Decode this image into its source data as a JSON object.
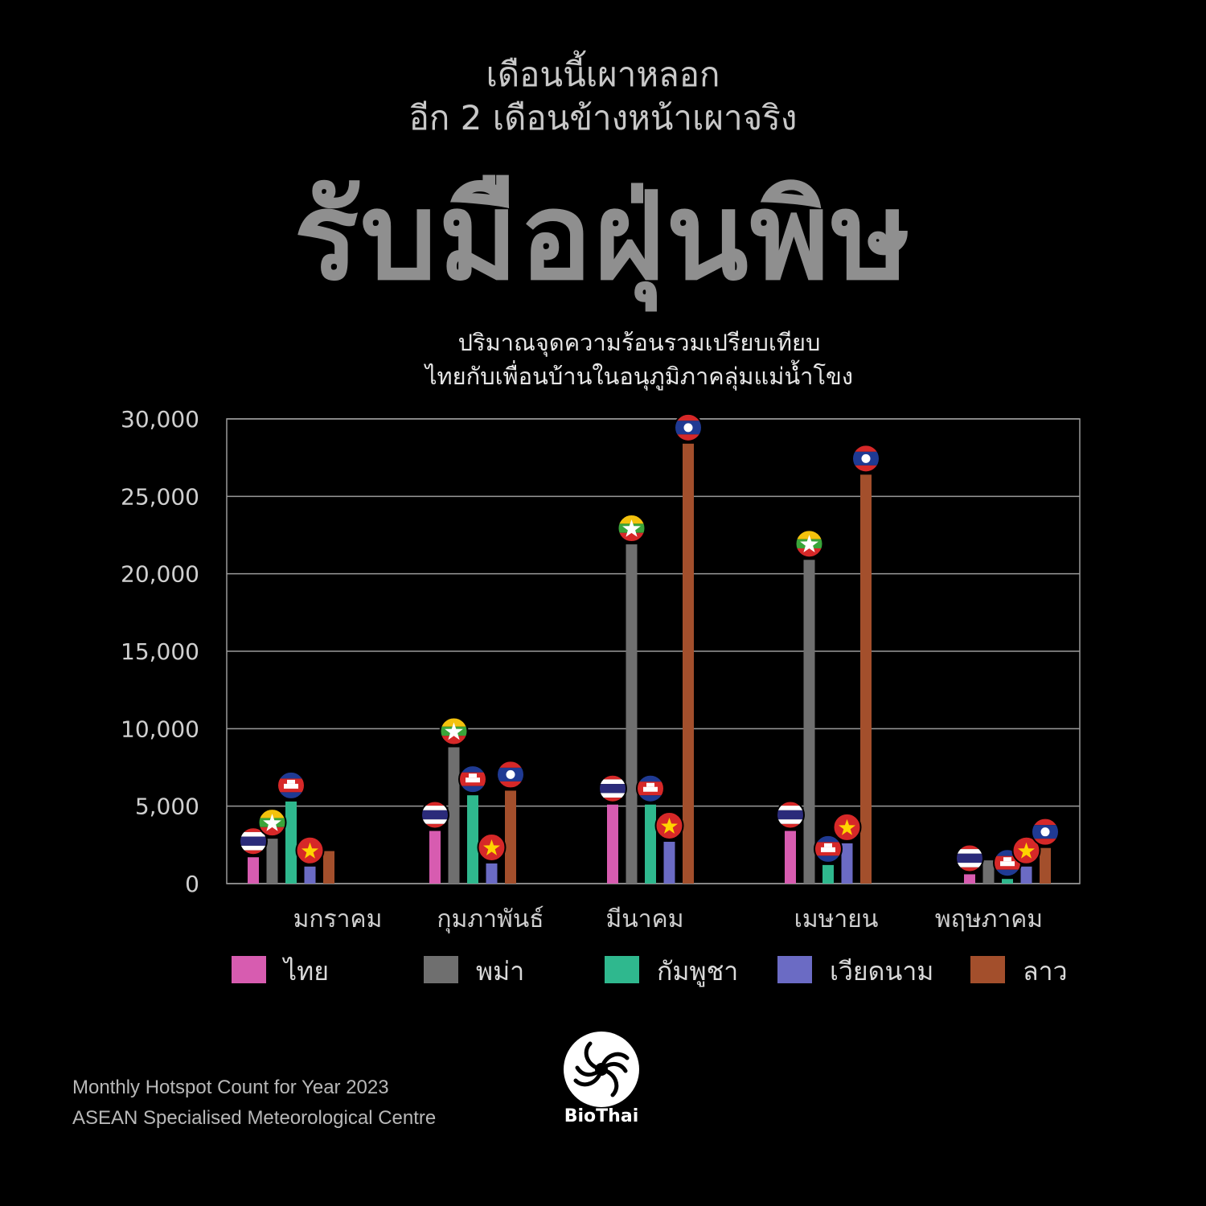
{
  "header": {
    "line1": "เดือนนี้เผาหลอก",
    "line2": "อีก 2 เดือนข้างหน้าเผาจริง",
    "title": "รับมือฝุ่นพิษ",
    "subtitle1": "ปริมาณจุดความร้อนรวมเปรียบเทียบ",
    "subtitle2": "ไทยกับเพื่อนบ้านในอนุภูมิภาคลุ่มแม่น้ำโขง"
  },
  "chart_data": {
    "type": "bar",
    "title": "",
    "xlabel": "",
    "ylabel": "",
    "ylim": [
      0,
      30000
    ],
    "yticks": [
      0,
      5000,
      10000,
      15000,
      20000,
      25000,
      30000
    ],
    "ytick_labels": [
      "0",
      "5,000",
      "10,000",
      "15,000",
      "20,000",
      "25,000",
      "30,000"
    ],
    "grid": true,
    "legend_position": "bottom",
    "categories": [
      "มกราคม",
      "กุมภาพันธ์",
      "มีนาคม",
      "เมษายน",
      "พฤษภาคม"
    ],
    "series": [
      {
        "name": "ไทย",
        "color": "#d75cb0",
        "flag": "thailand-flag-icon",
        "values": [
          1700,
          3400,
          5100,
          3400,
          600
        ]
      },
      {
        "name": "พม่า",
        "color": "#6f6f6f",
        "flag": "myanmar-flag-icon",
        "values": [
          2900,
          8800,
          21900,
          20900,
          1500
        ]
      },
      {
        "name": "กัมพูชา",
        "color": "#2fb88e",
        "flag": "cambodia-flag-icon",
        "values": [
          5300,
          5700,
          5100,
          1200,
          300
        ]
      },
      {
        "name": "เวียดนาม",
        "color": "#6b6bc4",
        "flag": "vietnam-flag-icon",
        "values": [
          1100,
          1300,
          2700,
          2600,
          1100
        ]
      },
      {
        "name": "ลาว",
        "color": "#a34f2c",
        "flag": "laos-flag-icon",
        "values": [
          2100,
          6000,
          28400,
          26400,
          2300
        ]
      }
    ]
  },
  "source": {
    "line1": "Monthly Hotspot Count for Year 2023",
    "line2": "ASEAN Specialised Meteorological Centre"
  },
  "logo": {
    "text": "BioThai"
  }
}
